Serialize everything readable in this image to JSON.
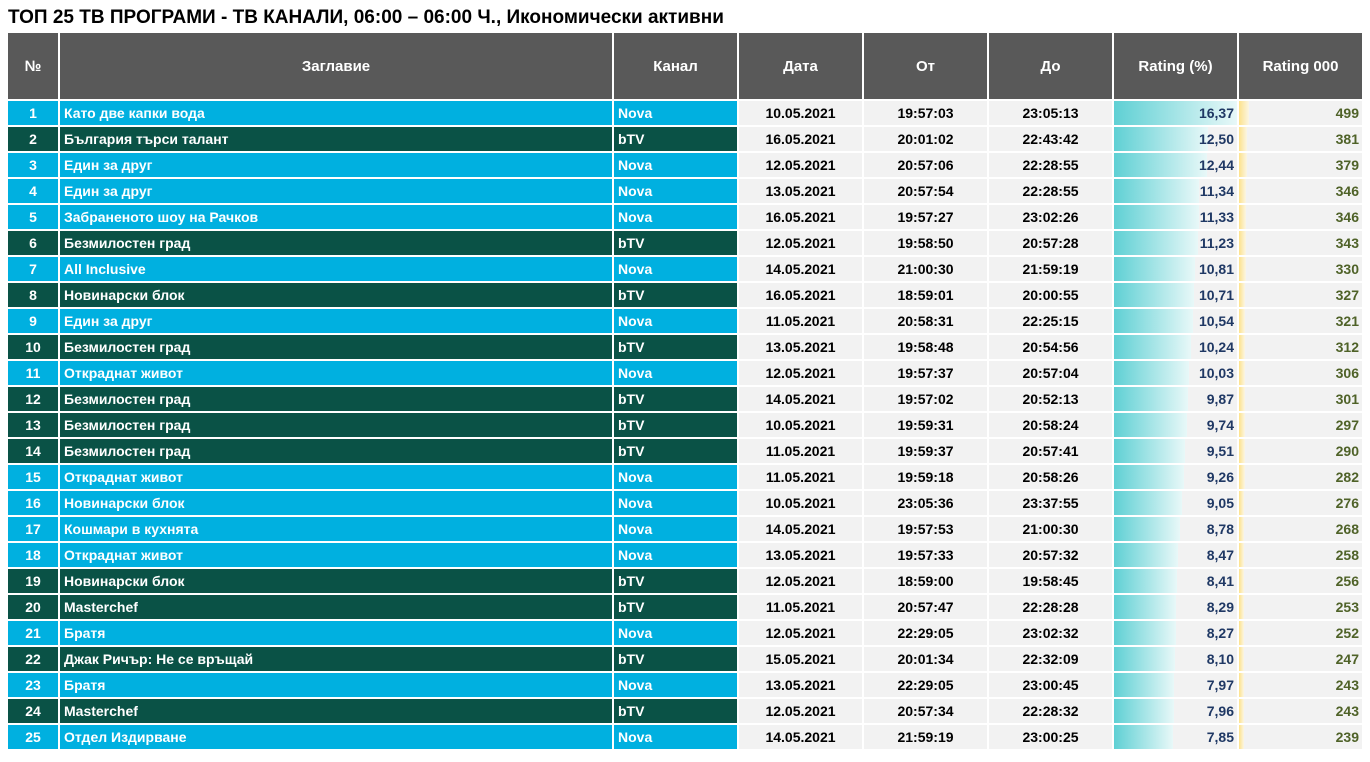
{
  "title": "ТОП 25 ТВ ПРОГРАМИ - ТВ КАНАЛИ, 06:00 – 06:00 Ч., Икономически активни",
  "headers": [
    "№",
    "Заглавие",
    "Канал",
    "Дата",
    "От",
    "До",
    "Rating (%)",
    "Rating 000"
  ],
  "colors": {
    "nova": "#00b0e0",
    "btv": "#0a5246",
    "header": "#595959",
    "rating_bar": "#5fd0d4",
    "r000_bar": "#fde28c"
  },
  "rows": [
    {
      "n": "1",
      "title": "Като две капки вода",
      "channel": "Nova",
      "date": "10.05.2021",
      "from": "19:57:03",
      "to": "23:05:13",
      "rating": "16,37",
      "r000": "499"
    },
    {
      "n": "2",
      "title": "България търси талант",
      "channel": "bTV",
      "date": "16.05.2021",
      "from": "20:01:02",
      "to": "22:43:42",
      "rating": "12,50",
      "r000": "381"
    },
    {
      "n": "3",
      "title": "Един за друг",
      "channel": "Nova",
      "date": "12.05.2021",
      "from": "20:57:06",
      "to": "22:28:55",
      "rating": "12,44",
      "r000": "379"
    },
    {
      "n": "4",
      "title": "Един за друг",
      "channel": "Nova",
      "date": "13.05.2021",
      "from": "20:57:54",
      "to": "22:28:55",
      "rating": "11,34",
      "r000": "346"
    },
    {
      "n": "5",
      "title": "Забраненото шоу на Рачков",
      "channel": "Nova",
      "date": "16.05.2021",
      "from": "19:57:27",
      "to": "23:02:26",
      "rating": "11,33",
      "r000": "346"
    },
    {
      "n": "6",
      "title": "Безмилостен град",
      "channel": "bTV",
      "date": "12.05.2021",
      "from": "19:58:50",
      "to": "20:57:28",
      "rating": "11,23",
      "r000": "343"
    },
    {
      "n": "7",
      "title": "All Inclusive",
      "channel": "Nova",
      "date": "14.05.2021",
      "from": "21:00:30",
      "to": "21:59:19",
      "rating": "10,81",
      "r000": "330"
    },
    {
      "n": "8",
      "title": "Новинарски блок",
      "channel": "bTV",
      "date": "16.05.2021",
      "from": "18:59:01",
      "to": "20:00:55",
      "rating": "10,71",
      "r000": "327"
    },
    {
      "n": "9",
      "title": "Един за друг",
      "channel": "Nova",
      "date": "11.05.2021",
      "from": "20:58:31",
      "to": "22:25:15",
      "rating": "10,54",
      "r000": "321"
    },
    {
      "n": "10",
      "title": "Безмилостен град",
      "channel": "bTV",
      "date": "13.05.2021",
      "from": "19:58:48",
      "to": "20:54:56",
      "rating": "10,24",
      "r000": "312"
    },
    {
      "n": "11",
      "title": "Откраднат живот",
      "channel": "Nova",
      "date": "12.05.2021",
      "from": "19:57:37",
      "to": "20:57:04",
      "rating": "10,03",
      "r000": "306"
    },
    {
      "n": "12",
      "title": "Безмилостен град",
      "channel": "bTV",
      "date": "14.05.2021",
      "from": "19:57:02",
      "to": "20:52:13",
      "rating": "9,87",
      "r000": "301"
    },
    {
      "n": "13",
      "title": "Безмилостен град",
      "channel": "bTV",
      "date": "10.05.2021",
      "from": "19:59:31",
      "to": "20:58:24",
      "rating": "9,74",
      "r000": "297"
    },
    {
      "n": "14",
      "title": "Безмилостен град",
      "channel": "bTV",
      "date": "11.05.2021",
      "from": "19:59:37",
      "to": "20:57:41",
      "rating": "9,51",
      "r000": "290"
    },
    {
      "n": "15",
      "title": "Откраднат живот",
      "channel": "Nova",
      "date": "11.05.2021",
      "from": "19:59:18",
      "to": "20:58:26",
      "rating": "9,26",
      "r000": "282"
    },
    {
      "n": "16",
      "title": "Новинарски блок",
      "channel": "Nova",
      "date": "10.05.2021",
      "from": "23:05:36",
      "to": "23:37:55",
      "rating": "9,05",
      "r000": "276"
    },
    {
      "n": "17",
      "title": "Кошмари в кухнята",
      "channel": "Nova",
      "date": "14.05.2021",
      "from": "19:57:53",
      "to": "21:00:30",
      "rating": "8,78",
      "r000": "268"
    },
    {
      "n": "18",
      "title": "Откраднат живот",
      "channel": "Nova",
      "date": "13.05.2021",
      "from": "19:57:33",
      "to": "20:57:32",
      "rating": "8,47",
      "r000": "258"
    },
    {
      "n": "19",
      "title": "Новинарски блок",
      "channel": "bTV",
      "date": "12.05.2021",
      "from": "18:59:00",
      "to": "19:58:45",
      "rating": "8,41",
      "r000": "256"
    },
    {
      "n": "20",
      "title": "Masterchef",
      "channel": "bTV",
      "date": "11.05.2021",
      "from": "20:57:47",
      "to": "22:28:28",
      "rating": "8,29",
      "r000": "253"
    },
    {
      "n": "21",
      "title": "Братя",
      "channel": "Nova",
      "date": "12.05.2021",
      "from": "22:29:05",
      "to": "23:02:32",
      "rating": "8,27",
      "r000": "252"
    },
    {
      "n": "22",
      "title": "Джак Ричър: Не се връщай",
      "channel": "bTV",
      "date": "15.05.2021",
      "from": "20:01:34",
      "to": "22:32:09",
      "rating": "8,10",
      "r000": "247"
    },
    {
      "n": "23",
      "title": "Братя",
      "channel": "Nova",
      "date": "13.05.2021",
      "from": "22:29:05",
      "to": "23:00:45",
      "rating": "7,97",
      "r000": "243"
    },
    {
      "n": "24",
      "title": "Masterchef",
      "channel": "bTV",
      "date": "12.05.2021",
      "from": "20:57:34",
      "to": "22:28:32",
      "rating": "7,96",
      "r000": "243"
    },
    {
      "n": "25",
      "title": "Отдел Издирване",
      "channel": "Nova",
      "date": "14.05.2021",
      "from": "21:59:19",
      "to": "23:00:25",
      "rating": "7,85",
      "r000": "239"
    }
  ]
}
